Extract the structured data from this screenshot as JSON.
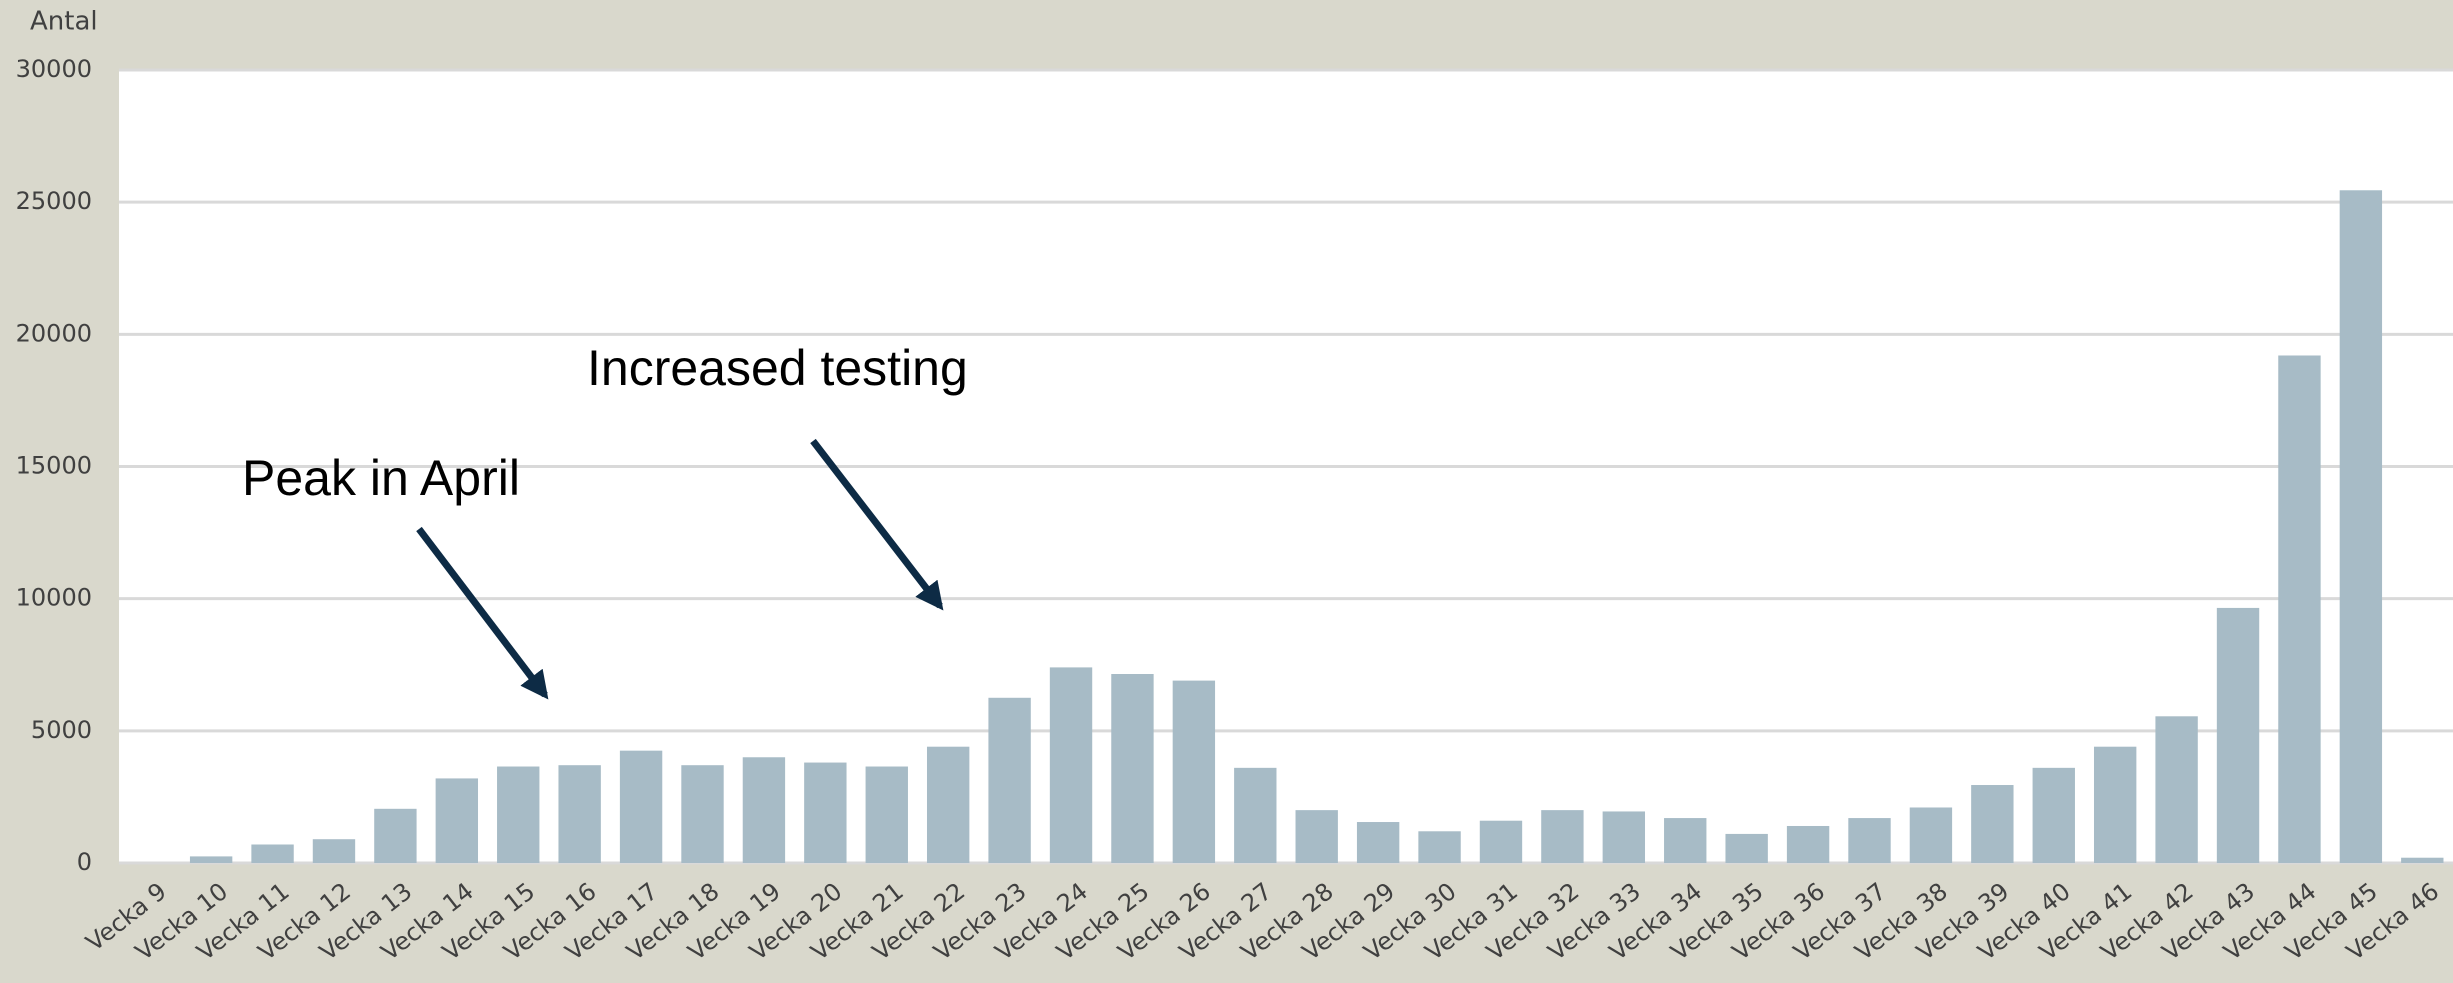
{
  "chart_data": {
    "type": "bar",
    "y_axis_label": "Antal",
    "categories": [
      "Vecka 9",
      "Vecka 10",
      "Vecka 11",
      "Vecka 12",
      "Vecka 13",
      "Vecka 14",
      "Vecka 15",
      "Vecka 16",
      "Vecka 17",
      "Vecka 18",
      "Vecka 19",
      "Vecka 20",
      "Vecka 21",
      "Vecka 22",
      "Vecka 23",
      "Vecka 24",
      "Vecka 25",
      "Vecka 26",
      "Vecka 27",
      "Vecka 28",
      "Vecka 29",
      "Vecka 30",
      "Vecka 31",
      "Vecka 32",
      "Vecka 33",
      "Vecka 34",
      "Vecka 35",
      "Vecka 36",
      "Vecka 37",
      "Vecka 38",
      "Vecka 39",
      "Vecka 40",
      "Vecka 41",
      "Vecka 42",
      "Vecka 43",
      "Vecka 44",
      "Vecka 45",
      "Vecka 46"
    ],
    "values": [
      0,
      250,
      700,
      900,
      2050,
      3200,
      3650,
      3700,
      4250,
      3700,
      4000,
      3800,
      3650,
      4400,
      6250,
      7400,
      7150,
      6900,
      3600,
      2000,
      1550,
      1200,
      1600,
      2000,
      1950,
      1700,
      1100,
      1400,
      1700,
      2100,
      2950,
      3600,
      4400,
      5550,
      9650,
      19200,
      25450,
      200
    ],
    "color": "#a7bbc6",
    "ylim": [
      0,
      30000
    ],
    "yticks": [
      0,
      5000,
      10000,
      15000,
      20000,
      25000,
      30000
    ],
    "grid": true,
    "annotations": [
      "Increased testing",
      "Peak in April"
    ]
  }
}
